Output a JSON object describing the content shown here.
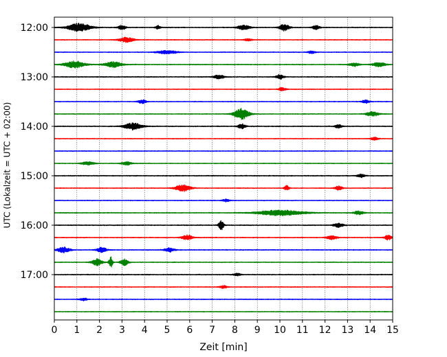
{
  "chart_data": {
    "type": "line",
    "title": "",
    "xlabel": "Zeit  [min]",
    "ylabel": "UTC (Lokalzeit = UTC + 02:00)",
    "xlim": [
      0,
      15
    ],
    "x_ticks": [
      "0",
      "1",
      "2",
      "3",
      "4",
      "5",
      "6",
      "7",
      "8",
      "9",
      "10",
      "11",
      "12",
      "13",
      "14",
      "15"
    ],
    "y_ticks": [
      {
        "label": "12:00",
        "row": 0
      },
      {
        "label": "13:00",
        "row": 4
      },
      {
        "label": "14:00",
        "row": 8
      },
      {
        "label": "15:00",
        "row": 12
      },
      {
        "label": "16:00",
        "row": 16
      },
      {
        "label": "17:00",
        "row": 20
      }
    ],
    "grid": "vertical dotted at each minute",
    "color_cycle": [
      "#000000",
      "#ff0000",
      "#0000ff",
      "#008000"
    ],
    "traces": [
      {
        "start": "12:00",
        "color": "#000000",
        "noise": 0.45,
        "events": [
          {
            "t": 1.1,
            "amp": 6,
            "dur": 0.9
          },
          {
            "t": 3.0,
            "amp": 3.5,
            "dur": 0.3
          },
          {
            "t": 4.6,
            "amp": 2.5,
            "dur": 0.2
          },
          {
            "t": 8.4,
            "amp": 3.5,
            "dur": 0.5
          },
          {
            "t": 10.2,
            "amp": 5,
            "dur": 0.4
          },
          {
            "t": 11.6,
            "amp": 3,
            "dur": 0.3
          }
        ]
      },
      {
        "start": "12:15",
        "color": "#ff0000",
        "noise": 0.4,
        "events": [
          {
            "t": 3.2,
            "amp": 3.5,
            "dur": 0.6
          },
          {
            "t": 8.6,
            "amp": 2,
            "dur": 0.3
          }
        ]
      },
      {
        "start": "12:30",
        "color": "#0000ff",
        "noise": 0.4,
        "events": [
          {
            "t": 5.0,
            "amp": 2.5,
            "dur": 0.8
          },
          {
            "t": 11.4,
            "amp": 2,
            "dur": 0.3
          }
        ]
      },
      {
        "start": "12:45",
        "color": "#008000",
        "noise": 0.45,
        "events": [
          {
            "t": 0.9,
            "amp": 5,
            "dur": 0.8
          },
          {
            "t": 2.6,
            "amp": 4,
            "dur": 0.7
          },
          {
            "t": 13.3,
            "amp": 2.5,
            "dur": 0.4
          },
          {
            "t": 14.4,
            "amp": 3.5,
            "dur": 0.5
          }
        ]
      },
      {
        "start": "13:00",
        "color": "#000000",
        "noise": 0.45,
        "events": [
          {
            "t": 7.3,
            "amp": 3,
            "dur": 0.4
          },
          {
            "t": 10.0,
            "amp": 3.5,
            "dur": 0.3
          }
        ]
      },
      {
        "start": "13:15",
        "color": "#ff0000",
        "noise": 0.4,
        "events": [
          {
            "t": 10.1,
            "amp": 2.5,
            "dur": 0.3
          }
        ]
      },
      {
        "start": "13:30",
        "color": "#0000ff",
        "noise": 0.4,
        "events": [
          {
            "t": 3.9,
            "amp": 3,
            "dur": 0.3
          },
          {
            "t": 13.8,
            "amp": 2.5,
            "dur": 0.3
          }
        ]
      },
      {
        "start": "13:45",
        "color": "#008000",
        "noise": 0.4,
        "events": [
          {
            "t": 8.3,
            "amp": 8,
            "dur": 0.6
          },
          {
            "t": 14.1,
            "amp": 3.5,
            "dur": 0.5
          }
        ]
      },
      {
        "start": "14:00",
        "color": "#000000",
        "noise": 0.45,
        "events": [
          {
            "t": 3.5,
            "amp": 5,
            "dur": 0.7
          },
          {
            "t": 8.3,
            "amp": 3.5,
            "dur": 0.3
          },
          {
            "t": 12.6,
            "amp": 2.5,
            "dur": 0.3
          }
        ]
      },
      {
        "start": "14:15",
        "color": "#ff0000",
        "noise": 0.4,
        "events": [
          {
            "t": 14.2,
            "amp": 2,
            "dur": 0.3
          }
        ]
      },
      {
        "start": "14:30",
        "color": "#0000ff",
        "noise": 0.4,
        "events": []
      },
      {
        "start": "14:45",
        "color": "#008000",
        "noise": 0.4,
        "events": [
          {
            "t": 1.5,
            "amp": 2.5,
            "dur": 0.5
          },
          {
            "t": 3.2,
            "amp": 2.5,
            "dur": 0.4
          }
        ]
      },
      {
        "start": "15:00",
        "color": "#000000",
        "noise": 0.45,
        "events": [
          {
            "t": 13.6,
            "amp": 2.5,
            "dur": 0.3
          }
        ]
      },
      {
        "start": "15:15",
        "color": "#ff0000",
        "noise": 0.4,
        "events": [
          {
            "t": 5.7,
            "amp": 5,
            "dur": 0.6
          },
          {
            "t": 10.3,
            "amp": 3.5,
            "dur": 0.2
          },
          {
            "t": 12.6,
            "amp": 3,
            "dur": 0.3
          }
        ]
      },
      {
        "start": "15:30",
        "color": "#0000ff",
        "noise": 0.4,
        "events": [
          {
            "t": 7.6,
            "amp": 2,
            "dur": 0.3
          }
        ]
      },
      {
        "start": "15:45",
        "color": "#008000",
        "noise": 0.45,
        "events": [
          {
            "t": 10.0,
            "amp": 4,
            "dur": 1.8
          },
          {
            "t": 13.5,
            "amp": 2.5,
            "dur": 0.4
          }
        ]
      },
      {
        "start": "16:00",
        "color": "#000000",
        "noise": 0.45,
        "events": [
          {
            "t": 7.4,
            "amp": 7,
            "dur": 0.2
          },
          {
            "t": 12.6,
            "amp": 3,
            "dur": 0.4
          }
        ]
      },
      {
        "start": "16:15",
        "color": "#ff0000",
        "noise": 0.45,
        "events": [
          {
            "t": 5.9,
            "amp": 4,
            "dur": 0.4
          },
          {
            "t": 12.3,
            "amp": 3,
            "dur": 0.4
          },
          {
            "t": 14.8,
            "amp": 3.5,
            "dur": 0.3
          }
        ]
      },
      {
        "start": "16:30",
        "color": "#0000ff",
        "noise": 0.45,
        "events": [
          {
            "t": 0.4,
            "amp": 4,
            "dur": 0.5
          },
          {
            "t": 2.1,
            "amp": 3.5,
            "dur": 0.4
          },
          {
            "t": 5.1,
            "amp": 3,
            "dur": 0.4
          }
        ]
      },
      {
        "start": "16:45",
        "color": "#008000",
        "noise": 0.4,
        "events": [
          {
            "t": 1.9,
            "amp": 5,
            "dur": 0.4
          },
          {
            "t": 2.5,
            "amp": 8,
            "dur": 0.15
          },
          {
            "t": 3.1,
            "amp": 5,
            "dur": 0.3
          }
        ]
      },
      {
        "start": "17:00",
        "color": "#000000",
        "noise": 0.45,
        "events": [
          {
            "t": 8.1,
            "amp": 2,
            "dur": 0.3
          }
        ]
      },
      {
        "start": "17:15",
        "color": "#ff0000",
        "noise": 0.4,
        "events": [
          {
            "t": 7.5,
            "amp": 2,
            "dur": 0.3
          }
        ]
      },
      {
        "start": "17:30",
        "color": "#0000ff",
        "noise": 0.4,
        "events": [
          {
            "t": 1.3,
            "amp": 2,
            "dur": 0.3
          }
        ]
      },
      {
        "start": "17:45",
        "color": "#008000",
        "noise": 0.4,
        "events": []
      }
    ]
  }
}
